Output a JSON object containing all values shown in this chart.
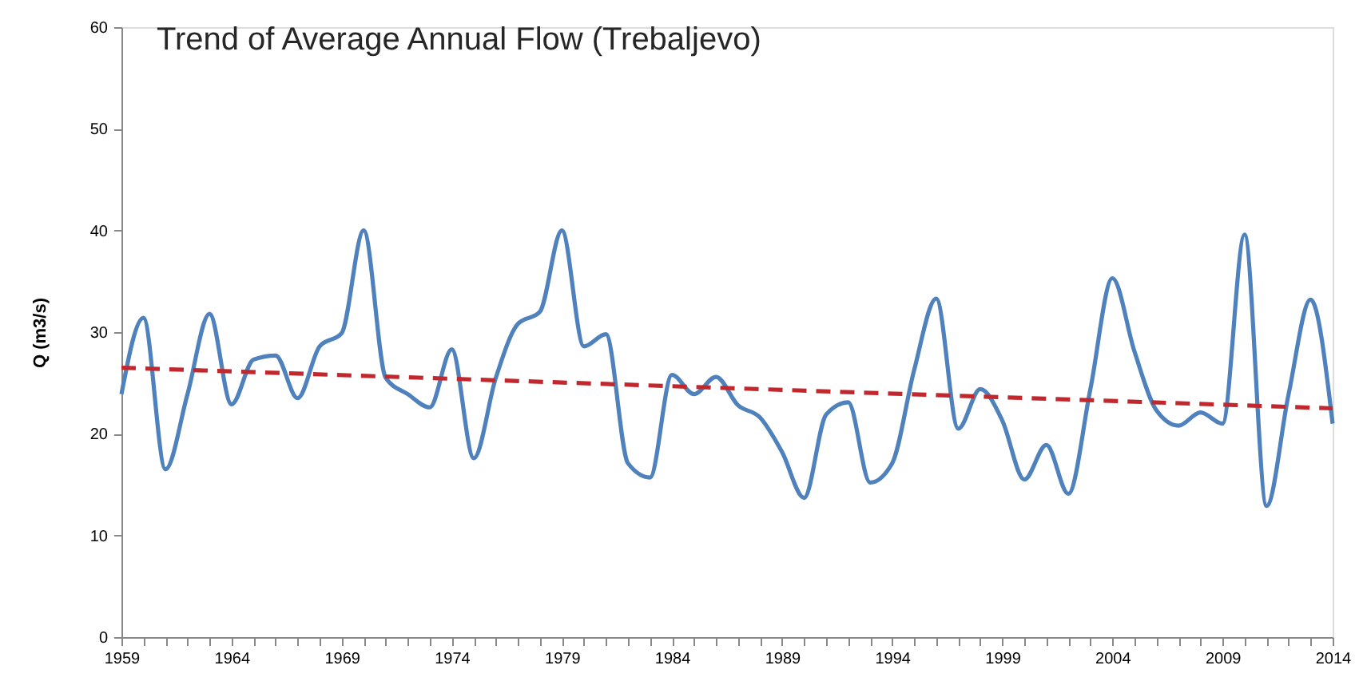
{
  "chart_data": {
    "type": "line",
    "title": "Trend of Average Annual Flow (Trebaljevo)",
    "ylabel": "Q (m3/s)",
    "x": [
      1959,
      1960,
      1961,
      1962,
      1963,
      1964,
      1965,
      1966,
      1967,
      1968,
      1969,
      1970,
      1971,
      1972,
      1973,
      1974,
      1975,
      1976,
      1977,
      1978,
      1979,
      1980,
      1981,
      1982,
      1983,
      1984,
      1985,
      1986,
      1987,
      1988,
      1989,
      1990,
      1991,
      1992,
      1993,
      1994,
      1995,
      1996,
      1997,
      1998,
      1999,
      2000,
      2001,
      2002,
      2003,
      2004,
      2005,
      2006,
      2007,
      2008,
      2009,
      2010,
      2011,
      2012,
      2013,
      2014
    ],
    "series": [
      {
        "color": "#4f81bd",
        "values": [
          23.9,
          31.4,
          16.5,
          23.9,
          31.8,
          22.9,
          27.3,
          27.7,
          23.5,
          28.6,
          29.9,
          40.0,
          25.5,
          23.9,
          22.6,
          28.3,
          17.6,
          25.5,
          30.8,
          32.0,
          40.0,
          28.6,
          29.8,
          17.1,
          15.7,
          25.8,
          23.9,
          25.6,
          22.8,
          21.6,
          18.2,
          13.7,
          21.9,
          23.1,
          15.2,
          17.1,
          26.3,
          33.3,
          20.5,
          24.4,
          21.3,
          15.5,
          18.9,
          14.1,
          24.4,
          35.3,
          28.1,
          22.3,
          20.8,
          22.1,
          21.0,
          39.6,
          12.9,
          23.9,
          33.2,
          21.0
        ]
      },
      {
        "type": "line",
        "x": [
          1959,
          2014
        ],
        "values": [
          26.5,
          22.5
        ],
        "color": "#c0282d",
        "line_style": "dashed"
      }
    ],
    "xlim": [
      1959,
      2014
    ],
    "ylim": [
      0,
      60
    ],
    "xticks": [
      1959,
      {
        "value": 1960,
        "label": null
      },
      {
        "value": 1961,
        "label": null
      },
      {
        "value": 1962,
        "label": null
      },
      {
        "value": 1963,
        "label": null
      },
      1964,
      {
        "value": 1965,
        "label": null
      },
      {
        "value": 1966,
        "label": null
      },
      {
        "value": 1967,
        "label": null
      },
      {
        "value": 1968,
        "label": null
      },
      1969,
      {
        "value": 1970,
        "label": null
      },
      {
        "value": 1971,
        "label": null
      },
      {
        "value": 1972,
        "label": null
      },
      {
        "value": 1973,
        "label": null
      },
      1974,
      {
        "value": 1975,
        "label": null
      },
      {
        "value": 1976,
        "label": null
      },
      {
        "value": 1977,
        "label": null
      },
      {
        "value": 1978,
        "label": null
      },
      1979,
      {
        "value": 1980,
        "label": null
      },
      {
        "value": 1981,
        "label": null
      },
      {
        "value": 1982,
        "label": null
      },
      {
        "value": 1983,
        "label": null
      },
      1984,
      {
        "value": 1985,
        "label": null
      },
      {
        "value": 1986,
        "label": null
      },
      {
        "value": 1987,
        "label": null
      },
      {
        "value": 1988,
        "label": null
      },
      1989,
      {
        "value": 1990,
        "label": null
      },
      {
        "value": 1991,
        "label": null
      },
      {
        "value": 1992,
        "label": null
      },
      {
        "value": 1993,
        "label": null
      },
      1994,
      {
        "value": 1995,
        "label": null
      },
      {
        "value": 1996,
        "label": null
      },
      {
        "value": 1997,
        "label": null
      },
      {
        "value": 1998,
        "label": null
      },
      1999,
      {
        "value": 2000,
        "label": null
      },
      {
        "value": 2001,
        "label": null
      },
      {
        "value": 2002,
        "label": null
      },
      {
        "value": 2003,
        "label": null
      },
      2004,
      {
        "value": 2005,
        "label": null
      },
      {
        "value": 2006,
        "label": null
      },
      {
        "value": 2007,
        "label": null
      },
      {
        "value": 2008,
        "label": null
      },
      2009,
      {
        "value": 2010,
        "label": null
      },
      {
        "value": 2011,
        "label": null
      },
      {
        "value": 2012,
        "label": null
      },
      {
        "value": 2013,
        "label": null
      },
      2014
    ],
    "yticks": [
      0,
      10,
      20,
      30,
      40,
      50,
      60
    ],
    "grid": false
  }
}
